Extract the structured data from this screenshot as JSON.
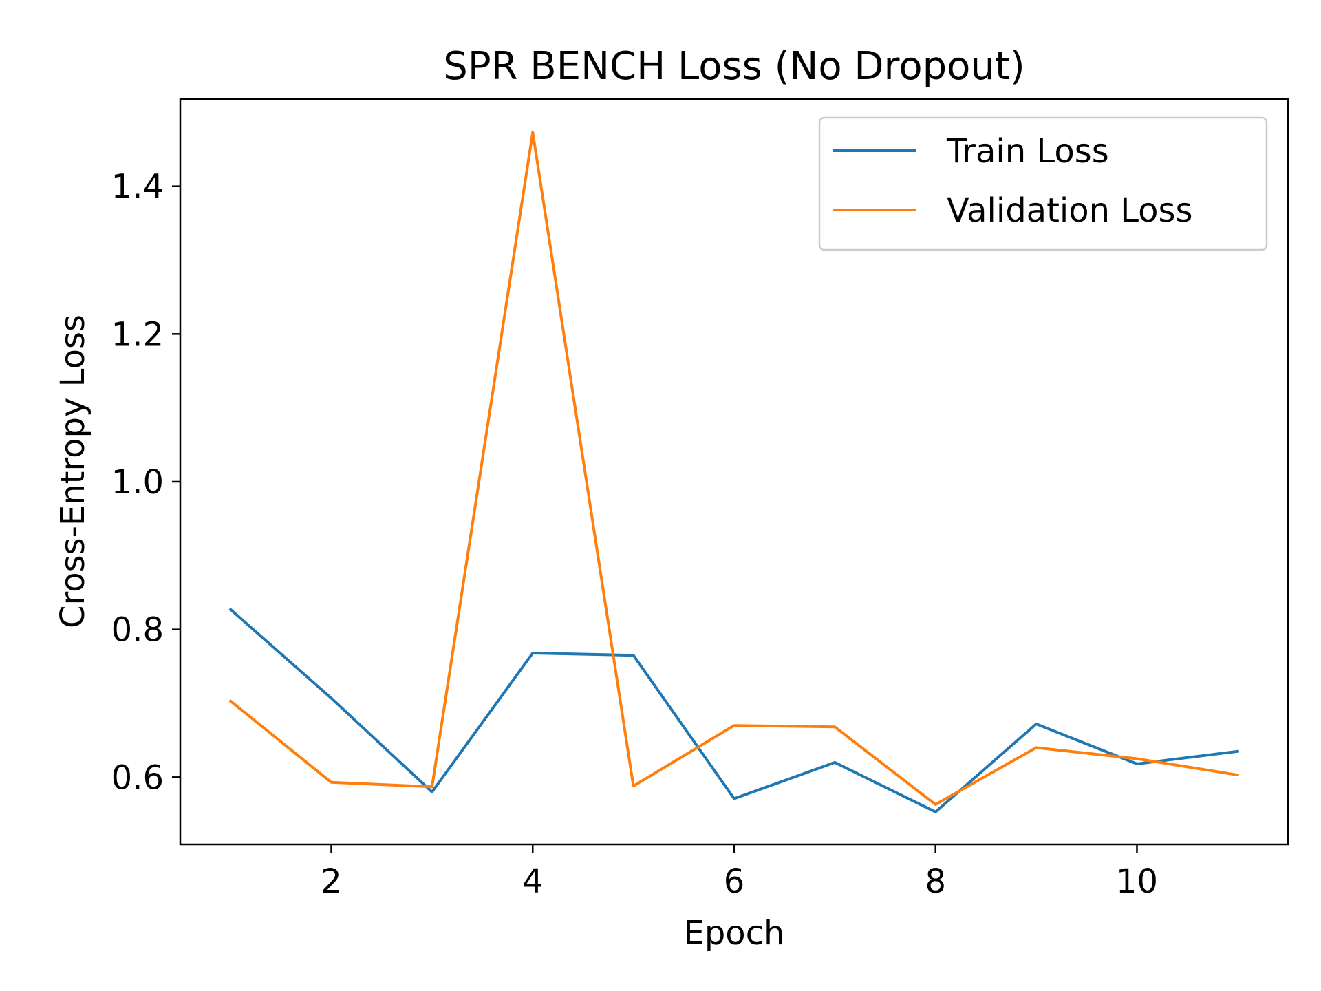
{
  "chart_data": {
    "type": "line",
    "title": "SPR BENCH Loss (No Dropout)",
    "xlabel": "Epoch",
    "ylabel": "Cross-Entropy Loss",
    "x": [
      1,
      2,
      3,
      4,
      5,
      6,
      7,
      8,
      9,
      10,
      11
    ],
    "xlim": [
      0.5,
      11.5
    ],
    "ylim": [
      0.509,
      1.518
    ],
    "xticks": [
      2,
      4,
      6,
      8,
      10
    ],
    "yticks": [
      0.6,
      0.8,
      1.0,
      1.2,
      1.4
    ],
    "xtick_labels": [
      "2",
      "4",
      "6",
      "8",
      "10"
    ],
    "ytick_labels": [
      "0.6",
      "0.8",
      "1.0",
      "1.2",
      "1.4"
    ],
    "grid": false,
    "legend_position": "top-right",
    "series": [
      {
        "name": "Train Loss",
        "color": "#1f77b4",
        "values": [
          0.827,
          0.707,
          0.58,
          0.768,
          0.765,
          0.571,
          0.62,
          0.553,
          0.672,
          0.618,
          0.635
        ]
      },
      {
        "name": "Validation Loss",
        "color": "#ff7f0e",
        "values": [
          0.703,
          0.593,
          0.587,
          1.473,
          0.588,
          0.67,
          0.668,
          0.563,
          0.64,
          0.625,
          0.603
        ]
      }
    ]
  }
}
